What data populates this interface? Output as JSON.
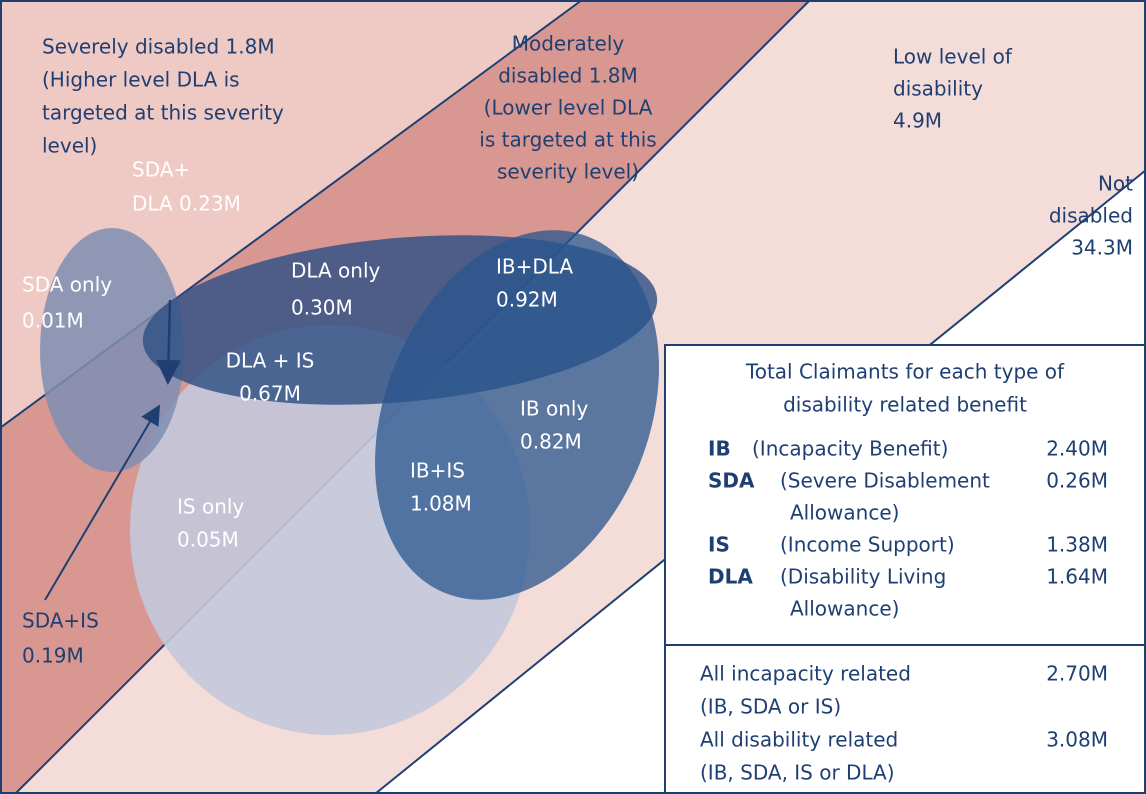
{
  "bands": [
    {
      "lines": [
        "Severely disabled 1.8M",
        "(Higher level DLA is",
        "targeted at this severity",
        "level)"
      ]
    },
    {
      "lines": [
        "Moderately",
        "disabled 1.8M",
        "(Lower level DLA",
        "is targeted at this",
        "severity level)"
      ]
    },
    {
      "lines": [
        "Low level of",
        "disability",
        "4.9M"
      ]
    },
    {
      "lines": [
        "Not",
        "disabled",
        "34.3M"
      ]
    }
  ],
  "regions": [
    {
      "lines": [
        "SDA only",
        "0.01M"
      ]
    },
    {
      "lines": [
        "SDA+",
        "DLA 0.23M"
      ]
    },
    {
      "lines": [
        "DLA only",
        "0.30M"
      ]
    },
    {
      "lines": [
        "IB+DLA",
        "0.92M"
      ]
    },
    {
      "lines": [
        "DLA + IS",
        "0.67M"
      ]
    },
    {
      "lines": [
        "IB only",
        "0.82M"
      ]
    },
    {
      "lines": [
        "IB+IS",
        "1.08M"
      ]
    },
    {
      "lines": [
        "IS only",
        "0.05M"
      ]
    },
    {
      "lines": [
        "SDA+IS",
        "0.19M"
      ]
    }
  ],
  "table": {
    "title": [
      "Total Claimants for each type of",
      "disability related benefit"
    ],
    "rows": [
      {
        "abbr": "IB",
        "name": [
          "(Incapacity Benefit)"
        ],
        "value": "2.40M"
      },
      {
        "abbr": "SDA",
        "name": [
          "(Severe Disablement",
          "Allowance)"
        ],
        "value": "0.26M"
      },
      {
        "abbr": "IS",
        "name": [
          "(Income Support)"
        ],
        "value": "1.38M"
      },
      {
        "abbr": "DLA",
        "name": [
          "(Disability Living",
          "Allowance)"
        ],
        "value": "1.64M"
      }
    ],
    "totals": [
      {
        "lines": [
          "All incapacity related",
          "(IB, SDA or IS)"
        ],
        "value": "2.70M"
      },
      {
        "lines": [
          "All disability related",
          "(IB, SDA, IS or DLA)"
        ],
        "value": "3.08M"
      }
    ]
  }
}
